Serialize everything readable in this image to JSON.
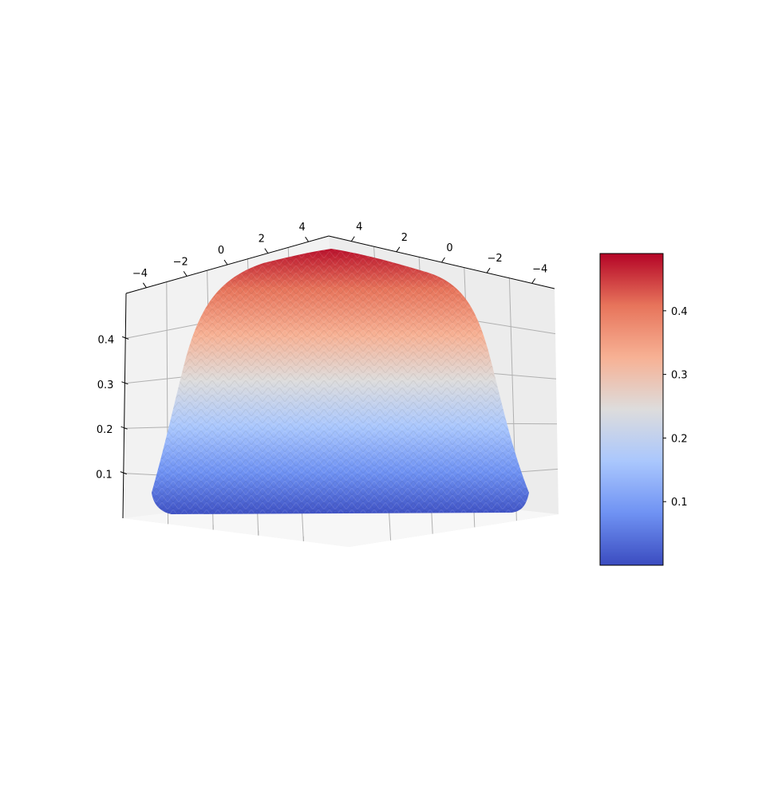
{
  "chart_data": {
    "type": "surface3d",
    "title": "",
    "colormap": "coolwarm",
    "colormap_stops": [
      "#3b4cc0",
      "#6f92f3",
      "#aac7fd",
      "#dddcdc",
      "#f7b194",
      "#e7745b",
      "#b40426"
    ],
    "x_axis": {
      "range": [
        -5,
        5
      ],
      "tick_labels": [
        "−4",
        "−2",
        "0",
        "2",
        "4"
      ]
    },
    "y_axis": {
      "range": [
        -5,
        5
      ],
      "tick_labels": [
        "4",
        "2",
        "0",
        "−2",
        "−4"
      ]
    },
    "z_axis": {
      "range": [
        0,
        0.5
      ],
      "tick_labels": [
        "0.1",
        "0.2",
        "0.3",
        "0.4"
      ]
    },
    "surface_z_range": [
      0.0,
      0.49
    ],
    "colorbar": {
      "range": [
        0.0,
        0.49
      ],
      "tick_labels": [
        "0.1",
        "0.2",
        "0.3",
        "0.4"
      ]
    },
    "grid": true
  }
}
